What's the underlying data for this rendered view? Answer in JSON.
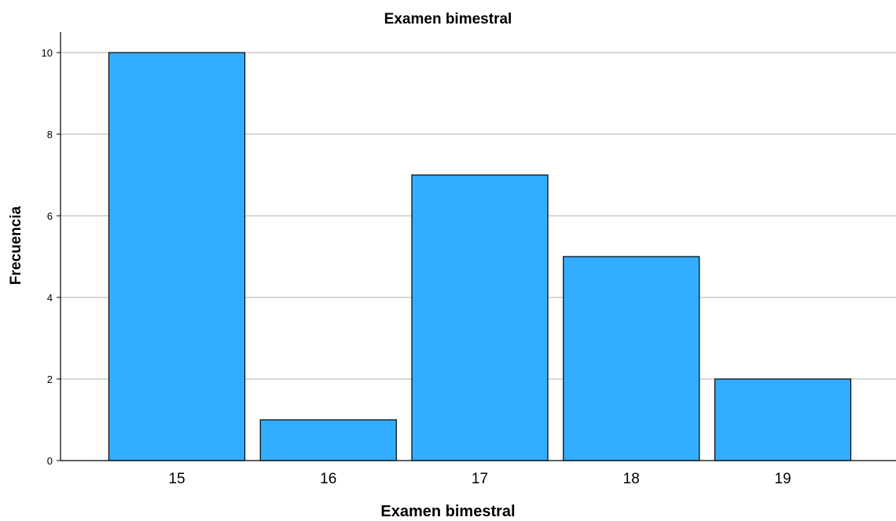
{
  "chart_data": {
    "type": "bar",
    "title": "Examen bimestral",
    "xlabel": "Examen bimestral",
    "ylabel": "Frecuencia",
    "categories": [
      "15",
      "16",
      "17",
      "18",
      "19"
    ],
    "values": [
      10,
      1,
      7,
      5,
      2
    ],
    "ylim": [
      0,
      10.5
    ],
    "yticks": [
      0,
      2,
      4,
      6,
      8,
      10
    ],
    "grid": true,
    "bar_color": "#33adff",
    "bar_outline_color": "#000000",
    "grid_color": "#b0b0b0"
  }
}
